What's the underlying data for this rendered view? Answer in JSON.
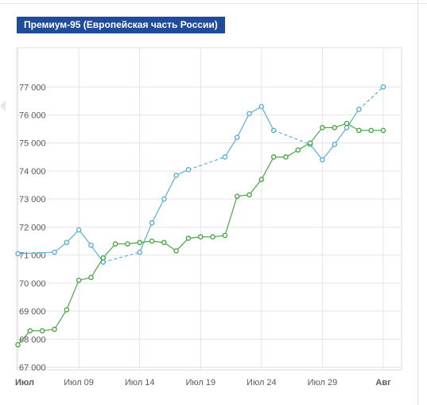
{
  "title": "Премиум-95 (Европейская часть России)",
  "chart_data": {
    "type": "line",
    "title": "Премиум-95 (Европейская часть России)",
    "xlabel": "",
    "ylabel": "",
    "ylim": [
      66900,
      78400
    ],
    "y_ticks": [
      67000,
      68000,
      69000,
      70000,
      71000,
      72000,
      73000,
      74000,
      75000,
      76000,
      77000
    ],
    "y_tick_labels": [
      "67 000",
      "68 000",
      "69 000",
      "70 000",
      "71 000",
      "72 000",
      "73 000",
      "74 000",
      "75 000",
      "76 000",
      "77 000"
    ],
    "x_ticks": [
      {
        "day": 4,
        "label": "Июл",
        "bold": true
      },
      {
        "day": 9,
        "label": "Июл 09",
        "bold": false
      },
      {
        "day": 14,
        "label": "Июл 14",
        "bold": false
      },
      {
        "day": 19,
        "label": "Июл 19",
        "bold": false
      },
      {
        "day": 24,
        "label": "Июл 24",
        "bold": false
      },
      {
        "day": 29,
        "label": "Июл 29",
        "bold": false
      },
      {
        "day": 34,
        "label": "Авг",
        "bold": true
      }
    ],
    "grid": true,
    "series": [
      {
        "color": "#5aaed6",
        "points": [
          [
            4,
            71050
          ],
          [
            7,
            71100
          ],
          [
            8,
            71450
          ],
          [
            9,
            71900
          ],
          [
            10,
            71350
          ],
          [
            11,
            70750
          ],
          [
            14,
            71100
          ],
          [
            15,
            72150
          ],
          [
            16,
            73000
          ],
          [
            17,
            73850
          ],
          [
            18,
            74050
          ],
          [
            21,
            74500
          ],
          [
            22,
            75200
          ],
          [
            23,
            76050
          ],
          [
            24,
            76300
          ],
          [
            25,
            75450
          ],
          [
            28,
            74950
          ],
          [
            29,
            74400
          ],
          [
            30,
            74950
          ],
          [
            31,
            75550
          ],
          [
            32,
            76200
          ],
          [
            34,
            77000
          ]
        ],
        "dashed_gaps": [
          [
            11,
            14
          ],
          [
            18,
            21
          ],
          [
            25,
            28
          ],
          [
            32,
            34
          ]
        ]
      },
      {
        "color": "#4aa843",
        "points": [
          [
            4,
            67800
          ],
          [
            5,
            68300
          ],
          [
            6,
            68300
          ],
          [
            7,
            68350
          ],
          [
            8,
            69050
          ],
          [
            9,
            70100
          ],
          [
            10,
            70200
          ],
          [
            11,
            70900
          ],
          [
            12,
            71400
          ],
          [
            13,
            71400
          ],
          [
            14,
            71450
          ],
          [
            15,
            71500
          ],
          [
            16,
            71450
          ],
          [
            17,
            71150
          ],
          [
            18,
            71600
          ],
          [
            19,
            71650
          ],
          [
            20,
            71650
          ],
          [
            21,
            71700
          ],
          [
            22,
            73100
          ],
          [
            23,
            73150
          ],
          [
            24,
            73700
          ],
          [
            25,
            74500
          ],
          [
            26,
            74500
          ],
          [
            27,
            74750
          ],
          [
            28,
            75000
          ],
          [
            29,
            75550
          ],
          [
            30,
            75550
          ],
          [
            31,
            75700
          ],
          [
            32,
            75450
          ],
          [
            33,
            75450
          ],
          [
            34,
            75450
          ]
        ],
        "dashed_gaps": []
      }
    ]
  }
}
